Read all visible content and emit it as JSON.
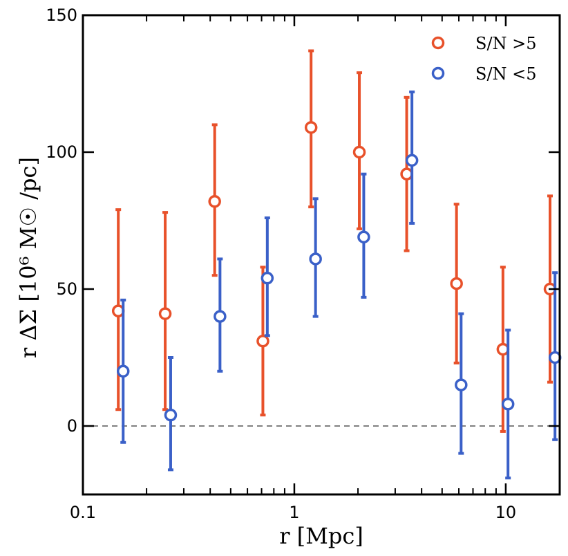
{
  "chart_data": {
    "type": "scatter",
    "xscale": "log",
    "xlim": [
      0.1,
      18.0
    ],
    "ylim": [
      -25,
      150
    ],
    "xlabel": "r [Mpc]",
    "ylabel": "r ΔΣ [10⁶ M☉ /pc]",
    "xticks": [
      {
        "value": 0.1,
        "label": "0.1"
      },
      {
        "value": 1,
        "label": "1"
      },
      {
        "value": 10,
        "label": "10"
      }
    ],
    "yticks": [
      {
        "value": 0,
        "label": "0"
      },
      {
        "value": 50,
        "label": "50"
      },
      {
        "value": 100,
        "label": "100"
      },
      {
        "value": 150,
        "label": "150"
      }
    ],
    "reference_line": {
      "y": 0,
      "style": "dashed",
      "color": "#808080"
    },
    "legend_position": "top-right",
    "series": [
      {
        "name": "S/N >5",
        "color": "#e8512a",
        "points": [
          {
            "x": 0.147,
            "y": 42,
            "lo": 6,
            "hi": 79
          },
          {
            "x": 0.245,
            "y": 41,
            "lo": 6,
            "hi": 78
          },
          {
            "x": 0.42,
            "y": 82,
            "lo": 55,
            "hi": 110
          },
          {
            "x": 0.71,
            "y": 31,
            "lo": 4,
            "hi": 58
          },
          {
            "x": 1.2,
            "y": 109,
            "lo": 80,
            "hi": 137
          },
          {
            "x": 2.03,
            "y": 100,
            "lo": 72,
            "hi": 129
          },
          {
            "x": 3.4,
            "y": 92,
            "lo": 64,
            "hi": 120
          },
          {
            "x": 5.85,
            "y": 52,
            "lo": 23,
            "hi": 81
          },
          {
            "x": 9.7,
            "y": 28,
            "lo": -2,
            "hi": 58
          },
          {
            "x": 16.2,
            "y": 50,
            "lo": 16,
            "hi": 84
          }
        ]
      },
      {
        "name": "S/N <5",
        "color": "#3a60c8",
        "points": [
          {
            "x": 0.155,
            "y": 20,
            "lo": -6,
            "hi": 46
          },
          {
            "x": 0.26,
            "y": 4,
            "lo": -16,
            "hi": 25
          },
          {
            "x": 0.445,
            "y": 40,
            "lo": 20,
            "hi": 61
          },
          {
            "x": 0.745,
            "y": 54,
            "lo": 33,
            "hi": 76
          },
          {
            "x": 1.26,
            "y": 61,
            "lo": 40,
            "hi": 83
          },
          {
            "x": 2.13,
            "y": 69,
            "lo": 47,
            "hi": 92
          },
          {
            "x": 3.6,
            "y": 97,
            "lo": 74,
            "hi": 122
          },
          {
            "x": 6.15,
            "y": 15,
            "lo": -10,
            "hi": 41
          },
          {
            "x": 10.25,
            "y": 8,
            "lo": -19,
            "hi": 35
          },
          {
            "x": 17.1,
            "y": 25,
            "lo": -5,
            "hi": 56
          }
        ]
      }
    ]
  }
}
